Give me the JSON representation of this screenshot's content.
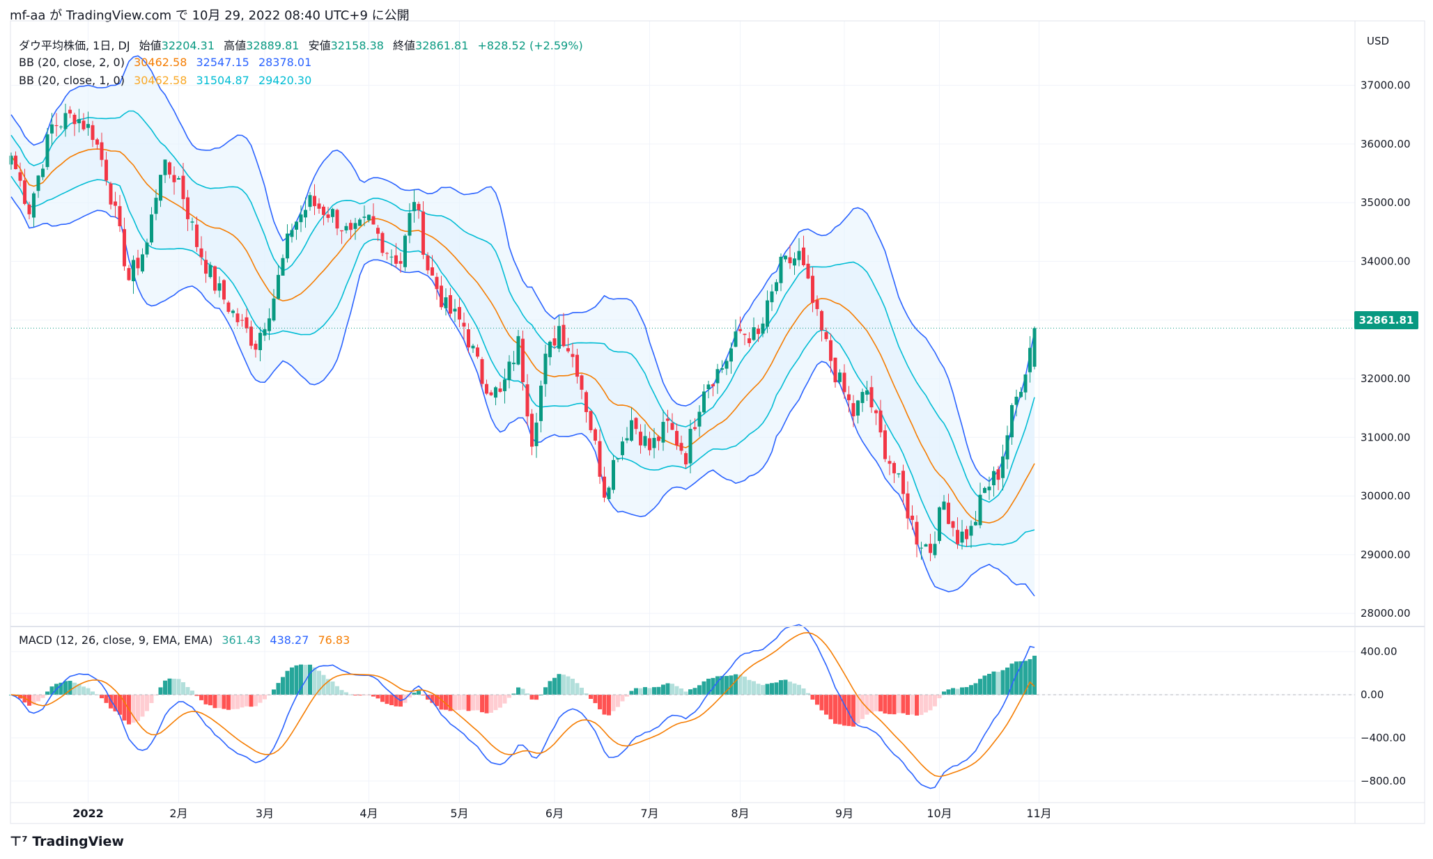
{
  "header": {
    "attribution": "mf-aa が TradingView.com で 10月 29, 2022 08:40 UTC+9 に公開"
  },
  "legend_main": {
    "symbol": "ダウ平均株価, 1日, DJ",
    "open_label": "始値",
    "open": "32204.31",
    "high_label": "高値",
    "high": "32889.81",
    "low_label": "安値",
    "low": "32158.38",
    "close_label": "終値",
    "close": "32861.81",
    "change": "+828.52 (+2.59%)"
  },
  "legend_bb2": {
    "label": "BB (20, close, 2, 0)",
    "basis": "30462.58",
    "upper": "32547.15",
    "lower": "28378.01"
  },
  "legend_bb1": {
    "label": "BB (20, close, 1, 0)",
    "basis": "30462.58",
    "upper": "31504.87",
    "lower": "29420.30"
  },
  "legend_macd": {
    "label": "MACD (12, 26, close, 9, EMA, EMA)",
    "hist": "361.43",
    "macd": "438.27",
    "signal": "76.83"
  },
  "price_axis": {
    "currency": "USD",
    "last_price": "32861.81"
  },
  "footer": {
    "brand": "TradingView"
  },
  "colors": {
    "up": "#089981",
    "down": "#f23645",
    "basis": "#f57c00",
    "outer": "#2962ff",
    "inner": "#00bcd4",
    "fill": "#e3f2fd"
  },
  "chart_data": [
    {
      "type": "candlestick",
      "title": "ダウ平均株価, 1日, DJ",
      "ylim": [
        27800,
        37600
      ],
      "y_ticks": [
        28000,
        29000,
        30000,
        31000,
        32000,
        33000,
        34000,
        35000,
        36000,
        37000
      ],
      "y_tick_labels": [
        "28000.00",
        "29000.00",
        "30000.00",
        "31000.00",
        "32000.00",
        "33000.00",
        "34000.00",
        "35000.00",
        "36000.00",
        "37000.00"
      ],
      "x_ticks": [
        {
          "label": "2022",
          "index": 17
        },
        {
          "label": "2月",
          "index": 37
        },
        {
          "label": "3月",
          "index": 56
        },
        {
          "label": "4月",
          "index": 79
        },
        {
          "label": "5月",
          "index": 99
        },
        {
          "label": "6月",
          "index": 120
        },
        {
          "label": "7月",
          "index": 141
        },
        {
          "label": "8月",
          "index": 161
        },
        {
          "label": "9月",
          "index": 184
        },
        {
          "label": "10月",
          "index": 205
        },
        {
          "label": "11月",
          "index": 227
        }
      ],
      "close_anchors": [
        [
          0,
          35800
        ],
        [
          4,
          34900
        ],
        [
          9,
          36300
        ],
        [
          14,
          36500
        ],
        [
          18,
          36200
        ],
        [
          21,
          35500
        ],
        [
          26,
          33700
        ],
        [
          30,
          34300
        ],
        [
          33,
          35600
        ],
        [
          37,
          35400
        ],
        [
          41,
          34300
        ],
        [
          45,
          33600
        ],
        [
          50,
          33000
        ],
        [
          54,
          32600
        ],
        [
          58,
          33400
        ],
        [
          62,
          34600
        ],
        [
          66,
          35000
        ],
        [
          71,
          34800
        ],
        [
          75,
          34400
        ],
        [
          79,
          34700
        ],
        [
          83,
          34200
        ],
        [
          86,
          34000
        ],
        [
          89,
          35100
        ],
        [
          92,
          33900
        ],
        [
          96,
          33200
        ],
        [
          100,
          32900
        ],
        [
          104,
          32000
        ],
        [
          108,
          31700
        ],
        [
          112,
          32600
        ],
        [
          115,
          31000
        ],
        [
          118,
          32300
        ],
        [
          121,
          32900
        ],
        [
          125,
          32200
        ],
        [
          128,
          31200
        ],
        [
          131,
          30100
        ],
        [
          134,
          30800
        ],
        [
          137,
          31300
        ],
        [
          141,
          30800
        ],
        [
          145,
          31200
        ],
        [
          149,
          30700
        ],
        [
          153,
          31900
        ],
        [
          157,
          32200
        ],
        [
          161,
          32800
        ],
        [
          165,
          32700
        ],
        [
          170,
          33900
        ],
        [
          174,
          34100
        ],
        [
          178,
          33000
        ],
        [
          182,
          32100
        ],
        [
          186,
          31400
        ],
        [
          189,
          31800
        ],
        [
          192,
          31000
        ],
        [
          196,
          30200
        ],
        [
          200,
          29300
        ],
        [
          203,
          29100
        ],
        [
          206,
          29900
        ],
        [
          209,
          29300
        ],
        [
          212,
          29400
        ],
        [
          215,
          30100
        ],
        [
          218,
          30400
        ],
        [
          221,
          31400
        ],
        [
          224,
          32200
        ],
        [
          226,
          32861.81
        ]
      ],
      "candles_count": 227,
      "last_candle": {
        "open": 32204.31,
        "high": 32889.81,
        "low": 32158.38,
        "close": 32861.81
      },
      "series": [
        {
          "name": "BB (20, close, 2, 0)",
          "basis": 30462.58,
          "upper": 32547.15,
          "lower": 28378.01
        },
        {
          "name": "BB (20, close, 1, 0)",
          "basis": 30462.58,
          "upper": 31504.87,
          "lower": 29420.3
        }
      ]
    },
    {
      "type": "bar",
      "title": "MACD (12, 26, close, 9, EMA, EMA)",
      "ylim": [
        -1000,
        600
      ],
      "y_ticks": [
        400,
        0,
        -400,
        -800
      ],
      "y_tick_labels": [
        "400.00",
        "0.00",
        "−400.00",
        "−800.00"
      ],
      "last_values": {
        "histogram": 361.43,
        "macd": 438.27,
        "signal": 76.83
      }
    }
  ]
}
